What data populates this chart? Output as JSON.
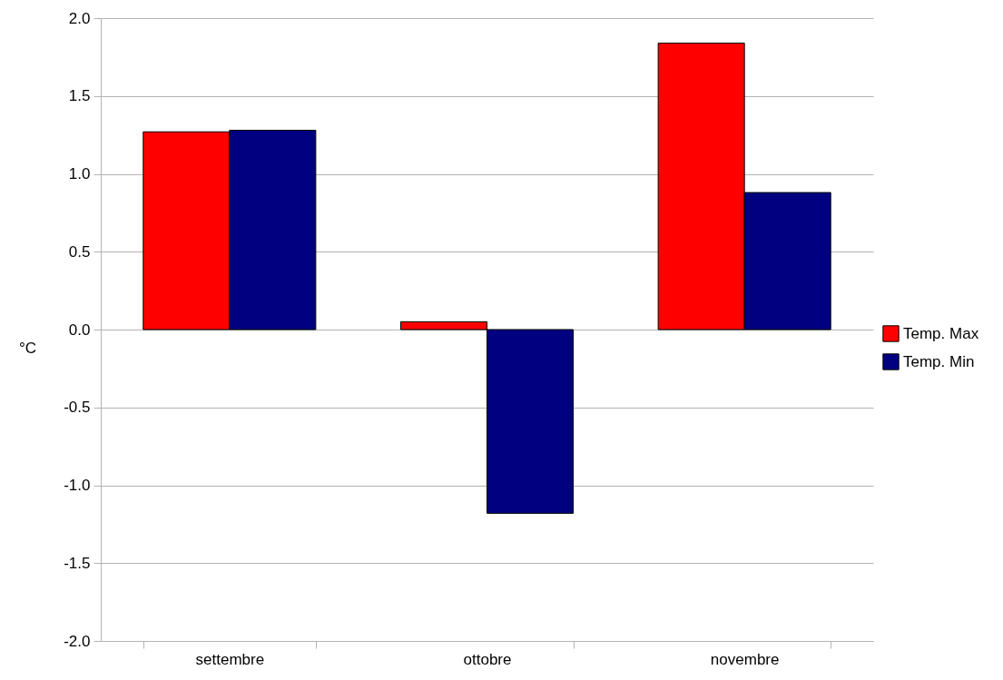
{
  "chart_data": {
    "type": "bar",
    "ylabel": "°C",
    "categories": [
      "settembre",
      "ottobre",
      "novembre"
    ],
    "series": [
      {
        "name": "Temp. Max",
        "color": "#ff0000",
        "values": [
          1.27,
          0.05,
          1.84
        ]
      },
      {
        "name": "Temp. Min",
        "color": "#000080",
        "values": [
          1.28,
          -1.18,
          0.88
        ]
      }
    ],
    "ylim": [
      -2.0,
      2.0
    ],
    "yticks": [
      {
        "value": -2,
        "label": "-2.0"
      },
      {
        "value": -1.5,
        "label": "-1.5"
      },
      {
        "value": -1,
        "label": "-1.0"
      },
      {
        "value": -0.5,
        "label": "-0.5"
      },
      {
        "value": 0,
        "label": "0.0"
      },
      {
        "value": 0.5,
        "label": "0.5"
      },
      {
        "value": 1,
        "label": "1.0"
      },
      {
        "value": 1.5,
        "label": "1.5"
      },
      {
        "value": 2,
        "label": "2.0"
      }
    ],
    "grid": "y",
    "legend": "right"
  }
}
